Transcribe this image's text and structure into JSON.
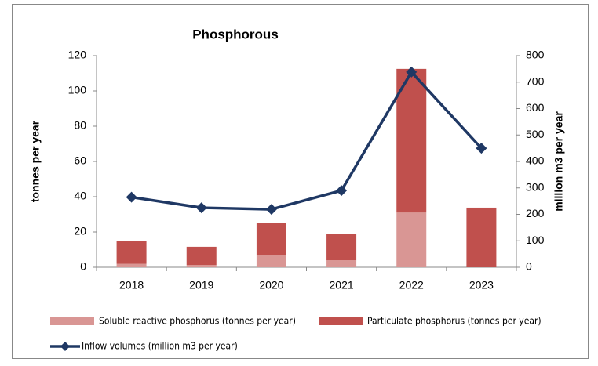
{
  "chart_data": {
    "type": "bar",
    "title": "Phosphorous",
    "categories": [
      "2018",
      "2019",
      "2020",
      "2021",
      "2022",
      "2023"
    ],
    "y_label": "tonnes per year",
    "y2_label": "million m3 per year",
    "ylim": [
      0,
      120
    ],
    "yticks": [
      0,
      20,
      40,
      60,
      80,
      100,
      120
    ],
    "y2lim": [
      0,
      800
    ],
    "y2ticks": [
      0,
      100,
      200,
      300,
      400,
      500,
      600,
      700,
      800
    ],
    "stacked": true,
    "grid": false,
    "series": [
      {
        "name": "Soluble reactive phosphorus (tonnes per year)",
        "type": "bar",
        "color": "#d99694",
        "values": [
          2,
          1.3,
          7,
          4,
          31,
          0
        ]
      },
      {
        "name": "Particulate phosphorus (tonnes per year)",
        "type": "bar",
        "color": "#c0504d",
        "values": [
          13,
          10.3,
          18,
          14.7,
          81.5,
          33.8
        ]
      },
      {
        "name": "Inflow volumes (million m3 per year)",
        "type": "line",
        "axis": "y2",
        "color": "#1f3864",
        "values": [
          265,
          225,
          219,
          290,
          738,
          450
        ]
      }
    ]
  }
}
